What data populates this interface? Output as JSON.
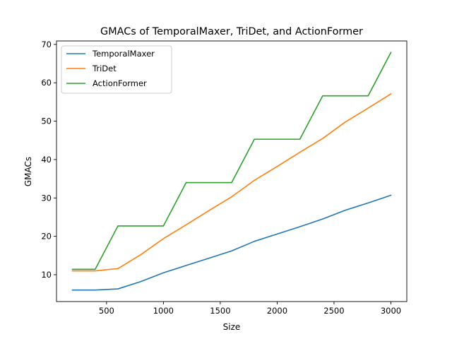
{
  "chart_data": {
    "type": "line",
    "title": "GMACs of TemporalMaxer, TriDet, and ActionFormer",
    "xlabel": "Size",
    "ylabel": "GMACs",
    "xlim": [
      60,
      3140
    ],
    "ylim": [
      3.0,
      70.9
    ],
    "xticks": [
      500,
      1000,
      1500,
      2000,
      2500,
      3000
    ],
    "yticks": [
      10,
      20,
      30,
      40,
      50,
      60,
      70
    ],
    "grid": false,
    "legend_position": "top-left",
    "x": [
      200,
      400,
      600,
      800,
      1000,
      1200,
      1400,
      1600,
      1800,
      2000,
      2200,
      2400,
      2600,
      2800,
      3000
    ],
    "series": [
      {
        "name": "TemporalMaxer",
        "color": "#1f77b4",
        "values": [
          6.0,
          6.0,
          6.3,
          8.2,
          10.5,
          12.4,
          14.3,
          16.2,
          18.7,
          20.6,
          22.5,
          24.5,
          26.8,
          28.7,
          30.7
        ]
      },
      {
        "name": "TriDet",
        "color": "#ff7f0e",
        "values": [
          11.0,
          11.0,
          11.6,
          15.2,
          19.4,
          23.0,
          26.7,
          30.3,
          34.6,
          38.2,
          41.9,
          45.5,
          49.8,
          53.4,
          57.1
        ]
      },
      {
        "name": "ActionFormer",
        "color": "#2ca02c",
        "values": [
          11.4,
          11.4,
          22.7,
          22.7,
          22.7,
          34.0,
          34.0,
          34.0,
          45.3,
          45.3,
          45.3,
          56.6,
          56.6,
          56.6,
          67.9
        ]
      }
    ]
  }
}
